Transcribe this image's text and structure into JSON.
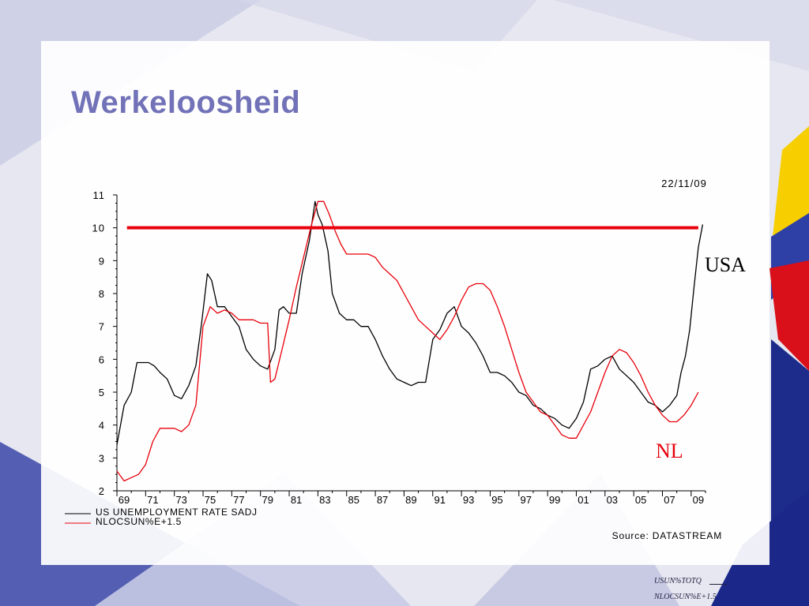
{
  "slide": {
    "title": "Werkeloosheid",
    "footnote_1": "USUN%TOTQ",
    "footnote_2": "NLOCSUN%E+1.5"
  },
  "colors": {
    "title": "#7272b8",
    "us_series": "#000000",
    "nl_series": "#e8000a",
    "reference_line": "#e8000a"
  },
  "chart_data": {
    "type": "line",
    "date_label": "22/11/09",
    "source": "Source: DATASTREAM",
    "ylim": [
      2,
      11
    ],
    "y_ticks": [
      2,
      3,
      4,
      5,
      6,
      7,
      8,
      9,
      10,
      11
    ],
    "xlim": [
      1969,
      2010
    ],
    "x_tick_labels": [
      "69",
      "71",
      "73",
      "75",
      "77",
      "79",
      "81",
      "83",
      "85",
      "87",
      "89",
      "91",
      "93",
      "95",
      "97",
      "99",
      "01",
      "03",
      "05",
      "07",
      "09"
    ],
    "reference_line": {
      "y": 10,
      "x_start": 1969.7,
      "x_end": 2009.5
    },
    "annotations": {
      "us_label": "USA",
      "nl_label": "NL"
    },
    "series": [
      {
        "name": "US UNEMPLOYMENT RATE SADJ",
        "key": "us",
        "x": [
          1969.0,
          1969.5,
          1970.0,
          1970.4,
          1970.8,
          1971.2,
          1971.6,
          1972.0,
          1972.5,
          1973.0,
          1973.5,
          1974.0,
          1974.5,
          1974.9,
          1975.3,
          1975.6,
          1976.0,
          1976.5,
          1977.0,
          1977.5,
          1978.0,
          1978.5,
          1979.0,
          1979.5,
          1980.0,
          1980.3,
          1980.6,
          1981.0,
          1981.5,
          1981.9,
          1982.4,
          1982.8,
          1983.0,
          1983.3,
          1983.7,
          1984.0,
          1984.5,
          1985.0,
          1985.5,
          1986.0,
          1986.5,
          1987.0,
          1987.5,
          1988.0,
          1988.5,
          1989.0,
          1989.5,
          1990.0,
          1990.5,
          1991.0,
          1991.5,
          1992.0,
          1992.5,
          1993.0,
          1993.5,
          1994.0,
          1994.5,
          1995.0,
          1995.5,
          1996.0,
          1996.5,
          1997.0,
          1997.5,
          1998.0,
          1998.5,
          1999.0,
          1999.5,
          2000.0,
          2000.5,
          2001.0,
          2001.5,
          2002.0,
          2002.5,
          2003.0,
          2003.5,
          2004.0,
          2004.5,
          2005.0,
          2005.5,
          2006.0,
          2006.5,
          2007.0,
          2007.5,
          2008.0,
          2008.3,
          2008.6,
          2008.9,
          2009.2,
          2009.5,
          2009.8
        ],
        "values": [
          3.4,
          4.6,
          5.0,
          5.9,
          5.9,
          5.9,
          5.8,
          5.6,
          5.4,
          4.9,
          4.8,
          5.2,
          5.8,
          7.1,
          8.6,
          8.4,
          7.6,
          7.6,
          7.3,
          7.0,
          6.3,
          6.0,
          5.8,
          5.7,
          6.3,
          7.5,
          7.6,
          7.4,
          7.4,
          8.6,
          9.6,
          10.8,
          10.4,
          10.1,
          9.3,
          8.0,
          7.4,
          7.2,
          7.2,
          7.0,
          7.0,
          6.6,
          6.1,
          5.7,
          5.4,
          5.3,
          5.2,
          5.3,
          5.3,
          6.6,
          6.9,
          7.4,
          7.6,
          7.0,
          6.8,
          6.5,
          6.1,
          5.6,
          5.6,
          5.5,
          5.3,
          5.0,
          4.9,
          4.6,
          4.5,
          4.3,
          4.2,
          4.0,
          3.9,
          4.2,
          4.7,
          5.7,
          5.8,
          6.0,
          6.1,
          5.7,
          5.5,
          5.3,
          5.0,
          4.7,
          4.6,
          4.4,
          4.6,
          4.9,
          5.6,
          6.1,
          6.9,
          8.2,
          9.4,
          10.1
        ]
      },
      {
        "name": "NLOCSUN%E+1.5",
        "key": "nl",
        "x": [
          1969.0,
          1969.5,
          1970.0,
          1970.5,
          1971.0,
          1971.5,
          1972.0,
          1972.5,
          1973.0,
          1973.5,
          1974.0,
          1974.5,
          1975.0,
          1975.5,
          1976.0,
          1976.5,
          1977.0,
          1977.5,
          1978.0,
          1978.5,
          1979.0,
          1979.5,
          1979.7,
          1980.0,
          1980.5,
          1981.0,
          1981.5,
          1982.0,
          1982.5,
          1983.0,
          1983.4,
          1983.8,
          1984.2,
          1984.6,
          1985.0,
          1985.5,
          1986.0,
          1986.5,
          1987.0,
          1987.5,
          1988.0,
          1988.5,
          1989.0,
          1989.5,
          1990.0,
          1990.5,
          1991.0,
          1991.5,
          1992.0,
          1992.5,
          1993.0,
          1993.5,
          1994.0,
          1994.5,
          1995.0,
          1995.5,
          1996.0,
          1996.5,
          1997.0,
          1997.5,
          1998.0,
          1998.5,
          1999.0,
          1999.5,
          2000.0,
          2000.5,
          2001.0,
          2001.5,
          2002.0,
          2002.5,
          2003.0,
          2003.5,
          2004.0,
          2004.5,
          2005.0,
          2005.5,
          2006.0,
          2006.5,
          2007.0,
          2007.5,
          2008.0,
          2008.5,
          2009.0,
          2009.5
        ],
        "values": [
          2.6,
          2.3,
          2.4,
          2.5,
          2.8,
          3.5,
          3.9,
          3.9,
          3.9,
          3.8,
          4.0,
          4.6,
          7.0,
          7.6,
          7.4,
          7.5,
          7.4,
          7.2,
          7.2,
          7.2,
          7.1,
          7.1,
          5.3,
          5.4,
          6.3,
          7.2,
          8.2,
          9.1,
          10.0,
          10.8,
          10.8,
          10.4,
          9.9,
          9.5,
          9.2,
          9.2,
          9.2,
          9.2,
          9.1,
          8.8,
          8.6,
          8.4,
          8.0,
          7.6,
          7.2,
          7.0,
          6.8,
          6.6,
          6.9,
          7.3,
          7.8,
          8.2,
          8.3,
          8.3,
          8.1,
          7.6,
          7.0,
          6.3,
          5.6,
          5.0,
          4.7,
          4.4,
          4.3,
          4.0,
          3.7,
          3.6,
          3.6,
          4.0,
          4.4,
          5.0,
          5.6,
          6.1,
          6.3,
          6.2,
          5.9,
          5.5,
          5.0,
          4.6,
          4.3,
          4.1,
          4.1,
          4.3,
          4.6,
          5.0
        ]
      }
    ]
  }
}
